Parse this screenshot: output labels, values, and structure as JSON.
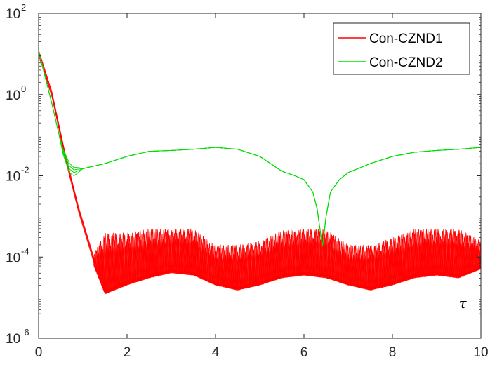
{
  "chart_data": {
    "type": "line",
    "title": "",
    "xlabel": "",
    "ylabel": "",
    "yscale": "log",
    "xlim": [
      0,
      10
    ],
    "ylim": [
      1e-06,
      100
    ],
    "xticks": [
      {
        "value": 0,
        "label": "0"
      },
      {
        "value": 2,
        "label": "2"
      },
      {
        "value": 4,
        "label": "4"
      },
      {
        "value": 6,
        "label": "6"
      },
      {
        "value": 8,
        "label": "8"
      },
      {
        "value": 10,
        "label": "10"
      }
    ],
    "yticks": [
      {
        "value": 100,
        "base": "10",
        "exp": "2"
      },
      {
        "value": 1,
        "base": "10",
        "exp": "0"
      },
      {
        "value": 0.01,
        "base": "10",
        "exp": "-2"
      },
      {
        "value": 0.0001,
        "base": "10",
        "exp": "-4"
      },
      {
        "value": 1e-06,
        "base": "10",
        "exp": "-6"
      }
    ],
    "grid": false,
    "legend": {
      "position": "top-right"
    },
    "annotation": {
      "text": "τ",
      "x": 9.5,
      "y": 5.5e-06
    },
    "series": [
      {
        "name": "Con-CZND1",
        "color": "#ff0000",
        "style": "oscillating-band",
        "x": [
          0,
          0.3,
          0.6,
          0.9,
          1.25,
          1.5,
          2.0,
          2.5,
          3.0,
          3.5,
          4.0,
          4.5,
          5.0,
          5.5,
          6.0,
          6.5,
          7.0,
          7.5,
          8.0,
          8.5,
          9.0,
          9.5,
          10.0
        ],
        "upper": [
          12,
          1.2,
          0.04,
          0.002,
          0.00012,
          0.0004,
          0.0004,
          0.0005,
          0.0005,
          0.0005,
          0.0002,
          0.0002,
          0.00025,
          0.00045,
          0.0005,
          0.0005,
          0.0002,
          0.0002,
          0.0003,
          0.0005,
          0.0005,
          0.0005,
          0.00025
        ],
        "lower": [
          10,
          0.9,
          0.025,
          0.0012,
          6e-05,
          1.2e-05,
          2e-05,
          3e-05,
          4e-05,
          3.5e-05,
          2e-05,
          1.5e-05,
          2e-05,
          3e-05,
          3.5e-05,
          3e-05,
          2e-05,
          1.5e-05,
          2e-05,
          3e-05,
          3.5e-05,
          3e-05,
          5e-05
        ],
        "cycles": 170
      },
      {
        "name": "Con-CZND2",
        "color": "#00dd00",
        "style": "line",
        "x": [
          0,
          0.3,
          0.55,
          0.7,
          0.8,
          1.0,
          1.5,
          2.0,
          2.5,
          3.0,
          3.5,
          4.0,
          4.5,
          5.0,
          5.5,
          5.8,
          6.0,
          6.2,
          6.3,
          6.35,
          6.42,
          6.5,
          6.6,
          6.8,
          7.0,
          7.5,
          8.0,
          8.5,
          9.0,
          9.5,
          10.0
        ],
        "y": [
          12,
          0.6,
          0.04,
          0.016,
          0.013,
          0.015,
          0.02,
          0.03,
          0.04,
          0.042,
          0.045,
          0.05,
          0.045,
          0.03,
          0.013,
          0.01,
          0.008,
          0.004,
          0.0015,
          0.0006,
          0.00018,
          0.001,
          0.004,
          0.008,
          0.012,
          0.02,
          0.03,
          0.038,
          0.042,
          0.045,
          0.05
        ]
      }
    ]
  }
}
